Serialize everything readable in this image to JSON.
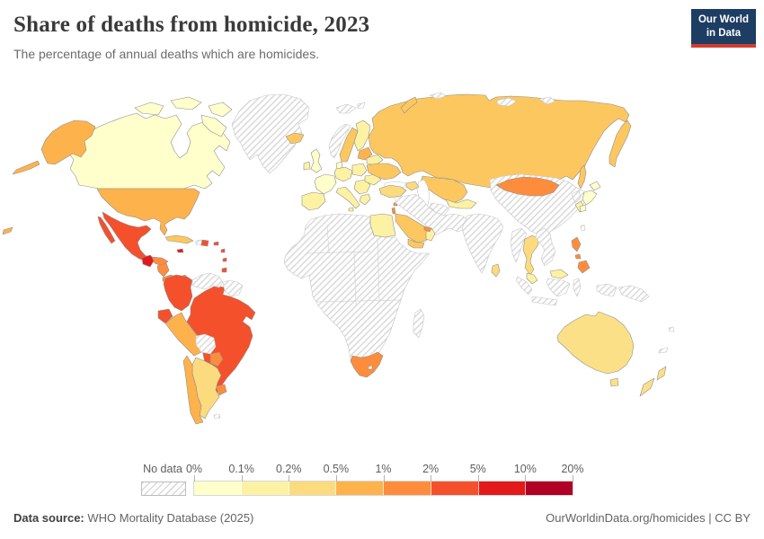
{
  "header": {
    "title": "Share of deaths from homicide, 2023",
    "subtitle": "The percentage of annual deaths which are homicides.",
    "logo": {
      "line1": "Our World",
      "line2": "in Data",
      "bg_color": "#1d3d63",
      "accent_color": "#d13d33"
    }
  },
  "legend": {
    "no_data_label": "No data",
    "tick_labels": [
      "0%",
      "0.1%",
      "0.2%",
      "0.5%",
      "1%",
      "2%",
      "5%",
      "10%",
      "20%"
    ],
    "bin_colors": [
      "#ffffcc",
      "#fdf2a3",
      "#fcda7e",
      "#feb24c",
      "#fd8d3c",
      "#f4502c",
      "#e31a1c",
      "#b10026"
    ]
  },
  "footer": {
    "datasource_label": "Data source:",
    "datasource_value": " WHO Mortality Database (2025)",
    "attribution": "OurWorldinData.org/homicides | CC BY"
  },
  "map": {
    "land_stroke": "#8f8f8f",
    "no_data_stroke": "#c6c6c6",
    "sea_stroke": "#c2c2c2",
    "countries": {
      "canada": "#ffffcc",
      "greenland": "no-data",
      "united-states": "#feb24c",
      "mexico": "#f4502c",
      "guatemala": "#e31a1c",
      "honduras": "#fd8d3c",
      "nicaragua": "#fd8d3c",
      "costa-rica-panama": "#fd8d3c",
      "cuba": "#fdc75f",
      "jamaica": "#e31a1c",
      "haiti": "no-data",
      "dominican-republic": "#f4502c",
      "puerto-rico": "#f4502c",
      "antilles": "#f4502c",
      "trinidad": "#f4502c",
      "colombia": "#f4502c",
      "venezuela": "no-data",
      "guyana-suriname": "no-data",
      "ecuador": "#f4502c",
      "peru": "#feb24c",
      "brazil": "#f4502c",
      "bolivia": "no-data",
      "paraguay": "#fd8d3c",
      "uruguay": "#fd8d3c",
      "argentina": "#fcda7e",
      "chile": "#feb24c",
      "falklands": "no-data",
      "iceland": "#fdc75f",
      "svalbard": "no-data",
      "norway": "no-data",
      "sweden": "#fdc75f",
      "finland": "#fdf2a3",
      "denmark": "#ffffcc",
      "united-kingdom": "#ffffcc",
      "ireland": "#fdf2a3",
      "france": "#ffffcc",
      "spain": "#fdf2a3",
      "germany": "#fdf2a3",
      "poland": "#fdf2a3",
      "italy": "#fdf2a3",
      "balkans": "#fdf2a3",
      "greece": "#fdf2a3",
      "romania": "#fdf2a3",
      "baltics": "#feb24c",
      "belarus": "#fdf2a3",
      "ukraine": "#fdc75f",
      "russia": "#fdc75f",
      "kazakhstan": "#fdc75f",
      "central-asia": "#fdf2a3",
      "turkmenistan": "no-data",
      "caucasus": "#fcda7e",
      "turkey": "#fcda7e",
      "cyprus": "#fd8d3c",
      "israel": "#fd8d3c",
      "middle-east": "no-data",
      "saudi-arabia": "#fdc75f",
      "yemen": "#fdc75f",
      "oman": "#fdf2a3",
      "uae": "#fd8d3c",
      "egypt": "#fdf2a3",
      "africa": "no-data",
      "south-africa": "#fd8d3c",
      "lesotho": "#ffffff",
      "madagascar": "no-data",
      "arctic-islands": "no-data",
      "india": "no-data",
      "sri-lanka": "#fcda7e",
      "china": "no-data",
      "mongolia": "#fd8d3c",
      "north-korea": "no-data",
      "south-korea": "#fdf2a3",
      "japan": "#ffffcc",
      "taiwan": "no-data",
      "myanmar": "no-data",
      "thailand": "#fcda7e",
      "laos-vietnam": "no-data",
      "malaysia": "#fdf2a3",
      "indonesia": "no-data",
      "papua-new-guinea": "no-data",
      "philippines": "#fd8d3c",
      "australia": "#fbe087",
      "new-zealand": "#fbe087",
      "pacific-islands": "no-data",
      "hawaii": "#feb24c"
    }
  },
  "chart_data": {
    "type": "choropleth_map",
    "title": "Share of deaths from homicide, 2023",
    "subtitle": "The percentage of annual deaths which are homicides.",
    "unit": "% of annual deaths",
    "legend_position": "bottom",
    "color_scale": {
      "no_data": "hatched-gray",
      "bins": [
        {
          "range": "0-0.1%",
          "color": "#ffffcc"
        },
        {
          "range": "0.1-0.2%",
          "color": "#fdf2a3"
        },
        {
          "range": "0.2-0.5%",
          "color": "#fcda7e"
        },
        {
          "range": "0.5-1%",
          "color": "#feb24c"
        },
        {
          "range": "1-2%",
          "color": "#fd8d3c"
        },
        {
          "range": "2-5%",
          "color": "#f4502c"
        },
        {
          "range": "5-10%",
          "color": "#e31a1c"
        },
        {
          "range": "10-20%",
          "color": "#b10026"
        }
      ]
    },
    "countries": {
      "Canada": "0-0.1%",
      "United States": "0.5-1%",
      "Greenland": "no data",
      "Mexico": "2-5%",
      "Guatemala": "5-10%",
      "Honduras": "1-2%",
      "Nicaragua": "1-2%",
      "Costa Rica": "1-2%",
      "Panama": "1-2%",
      "Cuba": "0.5-1%",
      "Jamaica": "5-10%",
      "Haiti": "no data",
      "Dominican Republic": "2-5%",
      "Colombia": "2-5%",
      "Venezuela": "no data",
      "Guyana": "no data",
      "Suriname": "no data",
      "Ecuador": "2-5%",
      "Peru": "0.5-1%",
      "Brazil": "2-5%",
      "Bolivia": "no data",
      "Paraguay": "1-2%",
      "Uruguay": "1-2%",
      "Argentina": "0.2-0.5%",
      "Chile": "0.5-1%",
      "Iceland": "0.5-1%",
      "Norway": "no data",
      "Sweden": "0.5-1%",
      "Finland": "0.1-0.2%",
      "Denmark": "0-0.1%",
      "United Kingdom": "0-0.1%",
      "Ireland": "0.1-0.2%",
      "France": "0-0.1%",
      "Spain": "0.1-0.2%",
      "Germany": "0.1-0.2%",
      "Poland": "0.1-0.2%",
      "Italy": "0.1-0.2%",
      "Greece": "0.1-0.2%",
      "Romania": "0.1-0.2%",
      "Baltic states": "0.5-1%",
      "Belarus": "0.1-0.2%",
      "Ukraine": "0.5-1%",
      "Russia": "0.5-1%",
      "Kazakhstan": "0.5-1%",
      "Uzbekistan": "0.1-0.2%",
      "Turkmenistan": "no data",
      "Turkey": "0.2-0.5%",
      "Iran": "no data",
      "Iraq": "no data",
      "Afghanistan": "no data",
      "Pakistan": "no data",
      "Saudi Arabia": "0.5-1%",
      "Yemen": "0.5-1%",
      "Oman": "0.1-0.2%",
      "United Arab Emirates": "1-2%",
      "Israel": "1-2%",
      "Egypt": "0.1-0.2%",
      "Sub-Saharan Africa (most)": "no data",
      "South Africa": "1-2%",
      "Madagascar": "no data",
      "India": "no data",
      "China": "no data",
      "Mongolia": "1-2%",
      "North Korea": "no data",
      "South Korea": "0.1-0.2%",
      "Japan": "0-0.1%",
      "Taiwan": "no data",
      "Myanmar": "no data",
      "Thailand": "0.2-0.5%",
      "Vietnam": "no data",
      "Malaysia": "0.1-0.2%",
      "Sri Lanka": "0.2-0.5%",
      "Philippines": "1-2%",
      "Indonesia": "no data",
      "Papua New Guinea": "no data",
      "Australia": "0.2-0.5%",
      "New Zealand": "0.2-0.5%"
    }
  }
}
